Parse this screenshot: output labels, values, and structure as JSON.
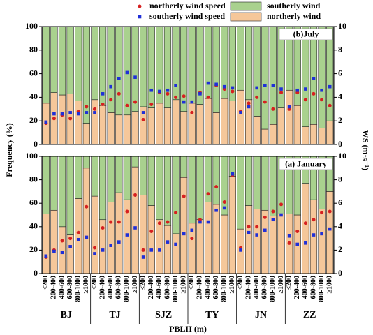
{
  "chart_data": [
    {
      "type": "bar",
      "title": "(b)July",
      "ylabel": "Frequency (%)",
      "y2label": "WS (m·s⁻¹)",
      "ylim": [
        0,
        100
      ],
      "yticks": [
        0,
        20,
        40,
        60,
        80,
        100
      ],
      "y2lim": [
        0,
        10
      ],
      "y2ticks": [
        0,
        2,
        4,
        6,
        8,
        10
      ],
      "legend": true,
      "series": [
        {
          "name": "northerly wind",
          "color": "#f5c79a",
          "kind": "bar",
          "values": [
            35,
            44,
            42,
            43,
            37,
            18,
            38,
            33,
            27,
            25,
            25,
            28,
            32,
            31,
            35,
            31,
            38,
            28,
            35,
            34,
            39,
            27,
            39,
            37,
            46,
            38,
            24,
            13,
            17,
            31,
            46,
            33,
            15,
            17,
            14,
            20
          ]
        },
        {
          "name": "southerly wind",
          "color": "#a9d18e",
          "kind": "bar",
          "values": [
            65,
            56,
            58,
            57,
            63,
            82,
            62,
            67,
            73,
            75,
            75,
            72,
            68,
            69,
            65,
            69,
            62,
            72,
            65,
            66,
            61,
            73,
            61,
            63,
            54,
            62,
            76,
            87,
            83,
            69,
            54,
            67,
            85,
            83,
            86,
            80
          ]
        },
        {
          "name": "northerly wind speed",
          "color": "#d62020",
          "kind": "circle",
          "axis": "y2",
          "values": [
            1.8,
            2.2,
            2.5,
            2.2,
            2.8,
            3.2,
            3.0,
            3.4,
            3.8,
            4.3,
            3.3,
            3.6,
            2.1,
            3.4,
            4.4,
            4.3,
            4.0,
            4.1,
            2.7,
            4.4,
            4.0,
            5.0,
            4.7,
            4.5,
            2.8,
            3.5,
            4.0,
            3.6,
            3.0,
            4.4,
            3.0,
            4.4,
            3.8,
            4.3,
            3.8,
            3.3
          ]
        },
        {
          "name": "southerly wind speed",
          "color": "#1f2fd8",
          "kind": "square",
          "axis": "y2",
          "values": [
            1.9,
            2.6,
            2.6,
            2.7,
            2.6,
            2.7,
            2.7,
            4.3,
            4.9,
            5.6,
            6.1,
            5.7,
            2.7,
            4.6,
            4.5,
            4.6,
            5.0,
            3.6,
            3.6,
            4.3,
            5.2,
            5.1,
            4.9,
            4.8,
            2.7,
            3.2,
            4.8,
            5.0,
            5.0,
            4.7,
            3.2,
            4.6,
            4.7,
            5.6,
            4.6,
            4.9
          ]
        }
      ]
    },
    {
      "type": "bar",
      "title": "(a) January",
      "xlabel": "PBLH (m)",
      "categories": [
        "≤200",
        "200-400",
        "400-600",
        "600-800",
        "800-1000",
        "≥1000",
        "≤200",
        "200-400",
        "400-600",
        "600-800",
        "800-1000",
        "≥1000",
        "≤200",
        "200-400",
        "400-600",
        "600-800",
        "800-1000",
        "≥1000",
        "≤200",
        "200-400",
        "400-600",
        "600-800",
        "800-1000",
        "≥1000",
        "≤200",
        "200-400",
        "400-600",
        "600-800",
        "800-1000",
        "≥1000",
        "≤200",
        "200-400",
        "400-600",
        "600-800",
        "800-1000",
        "≥1000"
      ],
      "groups": [
        "BJ",
        "TJ",
        "SJZ",
        "TY",
        "JN",
        "ZZ"
      ],
      "ylim": [
        0,
        100
      ],
      "yticks": [
        0,
        20,
        40,
        60,
        80,
        100
      ],
      "y2lim": [
        0,
        10
      ],
      "y2ticks": [
        0,
        2,
        4,
        6,
        8,
        10
      ],
      "legend": false,
      "series": [
        {
          "name": "northerly wind",
          "color": "#f5c79a",
          "kind": "bar",
          "values": [
            51,
            54,
            40,
            33,
            64,
            90,
            66,
            46,
            61,
            69,
            63,
            91,
            67,
            58,
            46,
            41,
            34,
            82,
            43,
            46,
            61,
            59,
            50,
            83,
            38,
            58,
            55,
            54,
            49,
            51,
            51,
            50,
            77,
            63,
            55,
            70
          ]
        },
        {
          "name": "southerly wind",
          "color": "#a9d18e",
          "kind": "bar",
          "values": [
            49,
            46,
            60,
            67,
            36,
            10,
            34,
            54,
            39,
            31,
            37,
            9,
            33,
            42,
            54,
            59,
            66,
            18,
            57,
            54,
            39,
            41,
            50,
            17,
            62,
            42,
            45,
            46,
            51,
            49,
            49,
            50,
            23,
            37,
            45,
            30
          ]
        },
        {
          "name": "northerly wind speed",
          "color": "#d62020",
          "kind": "circle",
          "axis": "y2",
          "values": [
            1.4,
            2.0,
            2.8,
            3.0,
            3.5,
            5.7,
            2.2,
            3.9,
            4.4,
            4.4,
            5.3,
            6.7,
            2.0,
            3.6,
            4.3,
            4.4,
            5.2,
            6.6,
            3.0,
            4.6,
            6.8,
            7.4,
            6.1,
            8.4,
            2.2,
            4.0,
            4.0,
            4.8,
            5.3,
            5.9,
            2.6,
            3.6,
            4.3,
            4.6,
            5.2,
            5.3
          ]
        },
        {
          "name": "southerly wind speed",
          "color": "#1f2fd8",
          "kind": "square",
          "axis": "y2",
          "values": [
            1.5,
            1.9,
            1.8,
            2.3,
            2.9,
            3.1,
            1.7,
            2.0,
            2.4,
            2.7,
            3.3,
            3.9,
            1.4,
            2.0,
            2.0,
            2.7,
            2.5,
            3.4,
            3.7,
            4.4,
            4.4,
            5.4,
            5.6,
            8.5,
            2.0,
            3.5,
            3.3,
            3.7,
            4.6,
            5.0,
            3.2,
            2.5,
            2.6,
            3.3,
            3.4,
            3.8
          ]
        }
      ]
    }
  ]
}
